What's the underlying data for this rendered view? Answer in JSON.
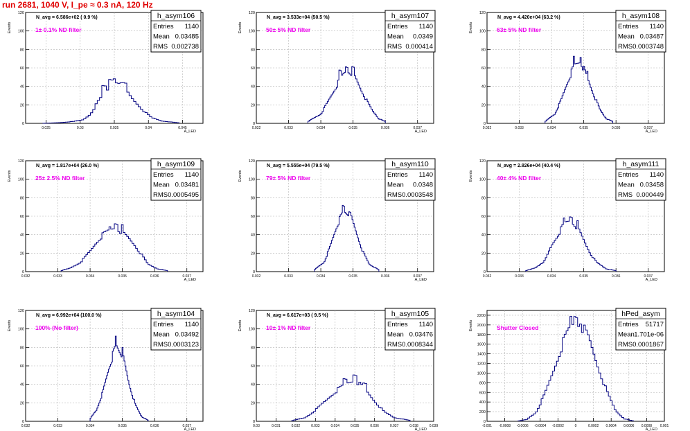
{
  "run_title": "run 2681,  1040 V, I_pe ≈ 0.3 nA, 120 Hz",
  "stats_labels": {
    "entries": "Entries",
    "mean": "Mean",
    "rms": "RMS"
  },
  "colors": {
    "hist": "#000080",
    "annotation": "#ee00ee",
    "title": "#e00000",
    "grid": "#b4b4b4"
  },
  "chart_data": [
    {
      "type": "bar",
      "name": "h_asym106",
      "n_avg": "N_avg = 6.586e+02 ( 0.9 %)",
      "annotation": "1± 0.1% ND filter",
      "entries": "1140",
      "mean": "0.03485",
      "rms": "0.002738",
      "ylabel": "Events",
      "xlabel": "A_LED",
      "xlim": [
        0.022,
        0.048
      ],
      "ylim": [
        0,
        120
      ],
      "yticks": [
        "0",
        "20",
        "40",
        "60",
        "80",
        "100",
        "120"
      ],
      "xticks": [
        {
          "v": 0.025,
          "l": "0.025"
        },
        {
          "v": 0.03,
          "l": "0.03"
        },
        {
          "v": 0.035,
          "l": "0.035"
        },
        {
          "v": 0.04,
          "l": "0.04"
        },
        {
          "v": 0.045,
          "l": "0.045"
        }
      ],
      "bins": [
        [
          0.0245,
          0.03
        ],
        [
          0.027,
          0.75
        ],
        [
          0.029,
          2
        ],
        [
          0.0305,
          4
        ],
        [
          0.0315,
          10
        ],
        [
          0.0325,
          22
        ],
        [
          0.0335,
          32
        ],
        [
          0.0345,
          40
        ],
        [
          0.035,
          48
        ],
        [
          0.0355,
          45
        ],
        [
          0.0365,
          38
        ],
        [
          0.0375,
          28
        ],
        [
          0.0385,
          20
        ],
        [
          0.0395,
          12
        ],
        [
          0.0405,
          6
        ],
        [
          0.042,
          2.5
        ],
        [
          0.0445,
          0.5
        ]
      ],
      "peaks": [
        [
          0.0335,
          40
        ],
        [
          0.0345,
          48
        ],
        [
          0.035,
          50
        ],
        [
          0.0355,
          46
        ],
        [
          0.0365,
          42
        ]
      ]
    },
    {
      "type": "bar",
      "name": "h_asym107",
      "n_avg": "N_avg = 3.533e+04 (50.5 %)",
      "annotation": "50± 5% ND filter",
      "entries": "1140",
      "mean": "0.0349",
      "rms": "0.000414",
      "ylabel": "Events",
      "xlabel": "A_LED",
      "xlim": [
        0.032,
        0.0375
      ],
      "ylim": [
        0,
        120
      ],
      "yticks": [
        "0",
        "20",
        "40",
        "60",
        "80",
        "100",
        "120"
      ],
      "xticks": [
        {
          "v": 0.032,
          "l": "0.032"
        },
        {
          "v": 0.033,
          "l": "0.033"
        },
        {
          "v": 0.034,
          "l": "0.034"
        },
        {
          "v": 0.035,
          "l": "0.035"
        },
        {
          "v": 0.036,
          "l": "0.036"
        },
        {
          "v": 0.037,
          "l": "0.037"
        }
      ],
      "bins": [
        [
          0.0336,
          2
        ],
        [
          0.034,
          10
        ],
        [
          0.0342,
          22
        ],
        [
          0.0344,
          35
        ],
        [
          0.0346,
          48
        ],
        [
          0.0348,
          58
        ],
        [
          0.035,
          54
        ],
        [
          0.0352,
          40
        ],
        [
          0.0354,
          26
        ],
        [
          0.0356,
          14
        ],
        [
          0.0358,
          5
        ],
        [
          0.036,
          2
        ]
      ],
      "peaks": [
        [
          0.0346,
          55
        ],
        [
          0.0348,
          62
        ],
        [
          0.035,
          58
        ]
      ]
    },
    {
      "type": "bar",
      "name": "h_asym108",
      "n_avg": "N_avg = 4.420e+04 (63.2 %)",
      "annotation": "63± 5% ND filter",
      "entries": "1140",
      "mean": "0.03487",
      "rms": "0.0003748",
      "ylabel": "Events",
      "xlabel": "A_LED",
      "xlim": [
        0.032,
        0.0375
      ],
      "ylim": [
        0,
        120
      ],
      "yticks": [
        "0",
        "20",
        "40",
        "60",
        "80",
        "100",
        "120"
      ],
      "xticks": [
        {
          "v": 0.032,
          "l": "0.032"
        },
        {
          "v": 0.033,
          "l": "0.033"
        },
        {
          "v": 0.034,
          "l": "0.034"
        },
        {
          "v": 0.035,
          "l": "0.035"
        },
        {
          "v": 0.036,
          "l": "0.036"
        },
        {
          "v": 0.037,
          "l": "0.037"
        }
      ],
      "bins": [
        [
          0.0338,
          2
        ],
        [
          0.0341,
          10
        ],
        [
          0.0343,
          25
        ],
        [
          0.0345,
          45
        ],
        [
          0.0347,
          62
        ],
        [
          0.0349,
          68
        ],
        [
          0.0351,
          50
        ],
        [
          0.0353,
          32
        ],
        [
          0.0355,
          15
        ],
        [
          0.0357,
          5
        ],
        [
          0.0359,
          2
        ]
      ],
      "peaks": [
        [
          0.0347,
          70
        ],
        [
          0.0349,
          74
        ],
        [
          0.0351,
          55
        ]
      ]
    },
    {
      "type": "bar",
      "name": "h_asym109",
      "n_avg": "N_avg = 1.817e+04 (26.0 %)",
      "annotation": "25± 2.5% ND filter",
      "entries": "1140",
      "mean": "0.03481",
      "rms": "0.0005495",
      "ylabel": "Events",
      "xlabel": "A_LED",
      "xlim": [
        0.032,
        0.0375
      ],
      "ylim": [
        0,
        120
      ],
      "yticks": [
        "0",
        "20",
        "40",
        "60",
        "80",
        "100",
        "120"
      ],
      "xticks": [
        {
          "v": 0.032,
          "l": "0.032"
        },
        {
          "v": 0.033,
          "l": "0.033"
        },
        {
          "v": 0.034,
          "l": "0.034"
        },
        {
          "v": 0.035,
          "l": "0.035"
        },
        {
          "v": 0.036,
          "l": "0.036"
        },
        {
          "v": 0.037,
          "l": "0.037"
        }
      ],
      "bins": [
        [
          0.0331,
          1
        ],
        [
          0.0334,
          4
        ],
        [
          0.0337,
          10
        ],
        [
          0.034,
          22
        ],
        [
          0.0342,
          32
        ],
        [
          0.0344,
          40
        ],
        [
          0.0346,
          45
        ],
        [
          0.0348,
          48
        ],
        [
          0.035,
          42
        ],
        [
          0.0352,
          36
        ],
        [
          0.0354,
          28
        ],
        [
          0.0356,
          18
        ],
        [
          0.0358,
          8
        ],
        [
          0.0361,
          3
        ],
        [
          0.0364,
          1
        ]
      ],
      "peaks": [
        [
          0.0346,
          48
        ],
        [
          0.0348,
          53
        ],
        [
          0.035,
          48
        ]
      ]
    },
    {
      "type": "bar",
      "name": "h_asym110",
      "n_avg": "N_avg = 5.555e+04 (79.5 %)",
      "annotation": "79± 5% ND filter",
      "entries": "1140",
      "mean": "0.0348",
      "rms": "0.0003548",
      "ylabel": "Events",
      "xlabel": "A_LED",
      "xlim": [
        0.032,
        0.0375
      ],
      "ylim": [
        0,
        120
      ],
      "yticks": [
        "0",
        "20",
        "40",
        "60",
        "80",
        "100",
        "120"
      ],
      "xticks": [
        {
          "v": 0.032,
          "l": "0.032"
        },
        {
          "v": 0.033,
          "l": "0.033"
        },
        {
          "v": 0.034,
          "l": "0.034"
        },
        {
          "v": 0.035,
          "l": "0.035"
        },
        {
          "v": 0.036,
          "l": "0.036"
        },
        {
          "v": 0.037,
          "l": "0.037"
        }
      ],
      "bins": [
        [
          0.0338,
          2
        ],
        [
          0.0341,
          10
        ],
        [
          0.0343,
          28
        ],
        [
          0.0345,
          50
        ],
        [
          0.0347,
          65
        ],
        [
          0.0349,
          62
        ],
        [
          0.0351,
          42
        ],
        [
          0.0353,
          22
        ],
        [
          0.0355,
          8
        ],
        [
          0.0358,
          2
        ]
      ],
      "peaks": [
        [
          0.0347,
          70
        ],
        [
          0.0349,
          68
        ]
      ]
    },
    {
      "type": "bar",
      "name": "h_asym111",
      "n_avg": "N_avg = 2.826e+04 (40.4 %)",
      "annotation": "40± 4% ND filter",
      "entries": "1140",
      "mean": "0.03458",
      "rms": "0.000449",
      "ylabel": "Events",
      "xlabel": "A_LED",
      "xlim": [
        0.032,
        0.0375
      ],
      "ylim": [
        0,
        120
      ],
      "yticks": [
        "0",
        "20",
        "40",
        "60",
        "80",
        "100",
        "120"
      ],
      "xticks": [
        {
          "v": 0.032,
          "l": "0.032"
        },
        {
          "v": 0.033,
          "l": "0.033"
        },
        {
          "v": 0.034,
          "l": "0.034"
        },
        {
          "v": 0.035,
          "l": "0.035"
        },
        {
          "v": 0.036,
          "l": "0.036"
        },
        {
          "v": 0.037,
          "l": "0.037"
        }
      ],
      "bins": [
        [
          0.0332,
          1
        ],
        [
          0.0335,
          4
        ],
        [
          0.0338,
          12
        ],
        [
          0.034,
          28
        ],
        [
          0.0342,
          40
        ],
        [
          0.0344,
          52
        ],
        [
          0.0346,
          56
        ],
        [
          0.0348,
          48
        ],
        [
          0.035,
          34
        ],
        [
          0.0352,
          20
        ],
        [
          0.0354,
          10
        ],
        [
          0.0357,
          3
        ],
        [
          0.036,
          1
        ]
      ],
      "peaks": [
        [
          0.0344,
          56
        ],
        [
          0.0346,
          60
        ],
        [
          0.0348,
          52
        ]
      ]
    },
    {
      "type": "bar",
      "name": "h_asym104",
      "n_avg": "N_avg = 6.992e+04 (100.0 %)",
      "annotation": "100% (No filter)",
      "entries": "1140",
      "mean": "0.03492",
      "rms": "0.0003123",
      "ylabel": "Events",
      "xlabel": "A_LED",
      "xlim": [
        0.032,
        0.0375
      ],
      "ylim": [
        0,
        120
      ],
      "yticks": [
        "0",
        "20",
        "40",
        "60",
        "80",
        "100",
        "120"
      ],
      "xticks": [
        {
          "v": 0.032,
          "l": "0.032"
        },
        {
          "v": 0.033,
          "l": "0.033"
        },
        {
          "v": 0.034,
          "l": "0.034"
        },
        {
          "v": 0.035,
          "l": "0.035"
        },
        {
          "v": 0.036,
          "l": "0.036"
        },
        {
          "v": 0.037,
          "l": "0.037"
        }
      ],
      "bins": [
        [
          0.034,
          3
        ],
        [
          0.0342,
          12
        ],
        [
          0.0344,
          32
        ],
        [
          0.0346,
          60
        ],
        [
          0.0348,
          82
        ],
        [
          0.035,
          72
        ],
        [
          0.0352,
          42
        ],
        [
          0.0354,
          18
        ],
        [
          0.0356,
          5
        ],
        [
          0.0358,
          1
        ]
      ],
      "peaks": [
        [
          0.0348,
          90
        ],
        [
          0.035,
          85
        ]
      ]
    },
    {
      "type": "bar",
      "name": "h_asym105",
      "n_avg": "N_avg = 6.617e+03 ( 9.5 %)",
      "annotation": "10± 1% ND filter",
      "entries": "1140",
      "mean": "0.03476",
      "rms": "0.0008344",
      "ylabel": "Events",
      "xlabel": "A_LED",
      "xlim": [
        0.03,
        0.039
      ],
      "ylim": [
        0,
        120
      ],
      "yticks": [
        "0",
        "20",
        "40",
        "60",
        "80",
        "100",
        "120"
      ],
      "xticks": [
        {
          "v": 0.03,
          "l": "0.03"
        },
        {
          "v": 0.031,
          "l": "0.031"
        },
        {
          "v": 0.032,
          "l": "0.032"
        },
        {
          "v": 0.033,
          "l": "0.033"
        },
        {
          "v": 0.034,
          "l": "0.034"
        },
        {
          "v": 0.035,
          "l": "0.035"
        },
        {
          "v": 0.036,
          "l": "0.036"
        },
        {
          "v": 0.037,
          "l": "0.037"
        },
        {
          "v": 0.038,
          "l": "0.038"
        },
        {
          "v": 0.039,
          "l": "0.039"
        }
      ],
      "bins": [
        [
          0.0318,
          0.7
        ],
        [
          0.0325,
          4
        ],
        [
          0.033,
          12
        ],
        [
          0.0335,
          22
        ],
        [
          0.034,
          32
        ],
        [
          0.0345,
          40
        ],
        [
          0.035,
          45
        ],
        [
          0.0355,
          35
        ],
        [
          0.036,
          22
        ],
        [
          0.0365,
          10
        ],
        [
          0.037,
          4
        ],
        [
          0.0378,
          1
        ]
      ],
      "peaks": [
        [
          0.0345,
          45
        ],
        [
          0.035,
          52
        ],
        [
          0.0355,
          40
        ]
      ]
    },
    {
      "type": "bar",
      "name": "hPed_asym",
      "n_avg": "",
      "annotation": "Shutter Closed",
      "entries": "51717",
      "mean": "1.701e-06",
      "rms": "0.0001867",
      "ylabel": "Events",
      "xlabel": "A_LED",
      "xlim": [
        -0.001,
        0.001
      ],
      "ylim": [
        0,
        2300
      ],
      "yticks": [
        "0",
        "200",
        "400",
        "600",
        "800",
        "1000",
        "1200",
        "1400",
        "1600",
        "1800",
        "2000",
        "2200"
      ],
      "xticks": [
        {
          "v": -0.001,
          "l": "-0.001"
        },
        {
          "v": -0.0008,
          "l": "-0.0008"
        },
        {
          "v": -0.0006,
          "l": "-0.0006"
        },
        {
          "v": -0.0004,
          "l": "-0.0004"
        },
        {
          "v": -0.0002,
          "l": "-0.0002"
        },
        {
          "v": 0,
          "l": "0"
        },
        {
          "v": 0.0002,
          "l": "0.0002"
        },
        {
          "v": 0.0004,
          "l": "0.0004"
        },
        {
          "v": 0.0006,
          "l": "0.0006"
        },
        {
          "v": 0.0008,
          "l": "0.0008"
        },
        {
          "v": 0.001,
          "l": "0.001"
        }
      ],
      "bins": [
        [
          -0.00065,
          5
        ],
        [
          -0.00055,
          40
        ],
        [
          -0.00045,
          180
        ],
        [
          -0.00035,
          550
        ],
        [
          -0.00025,
          1050
        ],
        [
          -0.00015,
          1600
        ],
        [
          -5e-05,
          2000
        ],
        [
          5e-05,
          2050
        ],
        [
          0.00015,
          1700
        ],
        [
          0.00025,
          1150
        ],
        [
          0.00035,
          620
        ],
        [
          0.00045,
          220
        ],
        [
          0.00055,
          50
        ],
        [
          0.00065,
          8
        ]
      ],
      "peaks": [
        [
          -5e-05,
          2150
        ],
        [
          0.0,
          2200
        ],
        [
          5e-05,
          2120
        ]
      ]
    }
  ]
}
